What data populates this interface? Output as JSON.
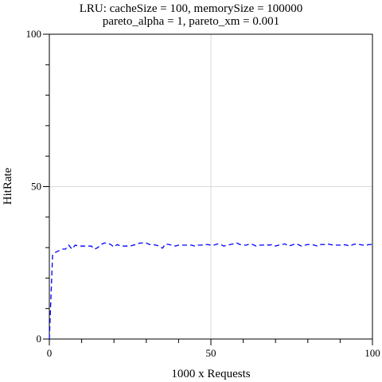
{
  "chart_data": {
    "type": "line",
    "title": "LRU: cacheSize = 100, memorySize = 100000",
    "subtitle": "pareto_alpha = 1, pareto_xm = 0.001",
    "xlabel": "1000 x Requests",
    "ylabel": "HitRate",
    "xlim": [
      0,
      100
    ],
    "ylim": [
      0,
      100
    ],
    "x_ticks": [
      "0",
      "50",
      "100"
    ],
    "y_ticks": [
      "0",
      "50",
      "100"
    ],
    "grid": true,
    "series": [
      {
        "color": "#0000ff",
        "style": "dashed",
        "x": [
          0,
          1,
          2,
          3,
          4,
          5,
          6,
          7,
          8,
          9,
          10,
          11,
          12,
          13,
          14,
          15,
          16,
          17,
          18,
          19,
          20,
          21,
          22,
          23,
          24,
          25,
          26,
          27,
          28,
          29,
          30,
          31,
          32,
          33,
          34,
          35,
          36,
          37,
          38,
          39,
          40,
          41,
          42,
          43,
          44,
          45,
          46,
          47,
          48,
          49,
          50,
          51,
          52,
          53,
          54,
          55,
          56,
          57,
          58,
          59,
          60,
          61,
          62,
          63,
          64,
          65,
          66,
          67,
          68,
          69,
          70,
          71,
          72,
          73,
          74,
          75,
          76,
          77,
          78,
          79,
          80,
          81,
          82,
          83,
          84,
          85,
          86,
          87,
          88,
          89,
          90,
          91,
          92,
          93,
          94,
          95,
          96,
          97,
          98,
          99,
          100
        ],
        "values": [
          0,
          27.5,
          28.5,
          29,
          29.5,
          29.5,
          30.8,
          29.5,
          30.8,
          30.5,
          30.5,
          30.5,
          30.5,
          30.5,
          29.5,
          30,
          31,
          31.5,
          31.5,
          31,
          30.2,
          31,
          30.5,
          30.5,
          30.5,
          30.5,
          30.8,
          31,
          31.5,
          31.5,
          31.5,
          31,
          31,
          30.8,
          30.5,
          29.8,
          31.2,
          31,
          30.8,
          30.5,
          30.8,
          30.8,
          30.8,
          30.8,
          30.8,
          30.5,
          30.8,
          30.8,
          31,
          31,
          30.8,
          30.8,
          31.2,
          31,
          30.5,
          30.8,
          31,
          31.2,
          31.5,
          31,
          30.8,
          30.8,
          31.2,
          31,
          30.5,
          30.8,
          30.8,
          31,
          30.8,
          31,
          30.5,
          30.8,
          31,
          31.2,
          30.5,
          30.8,
          31.2,
          31,
          30.5,
          30.8,
          31,
          31,
          30.8,
          30.5,
          31,
          31,
          31.2,
          31,
          30.8,
          30.8,
          30.8,
          31,
          30.8,
          30.5,
          31,
          31.2,
          31,
          30.8,
          30.8,
          31,
          31
        ]
      }
    ]
  }
}
